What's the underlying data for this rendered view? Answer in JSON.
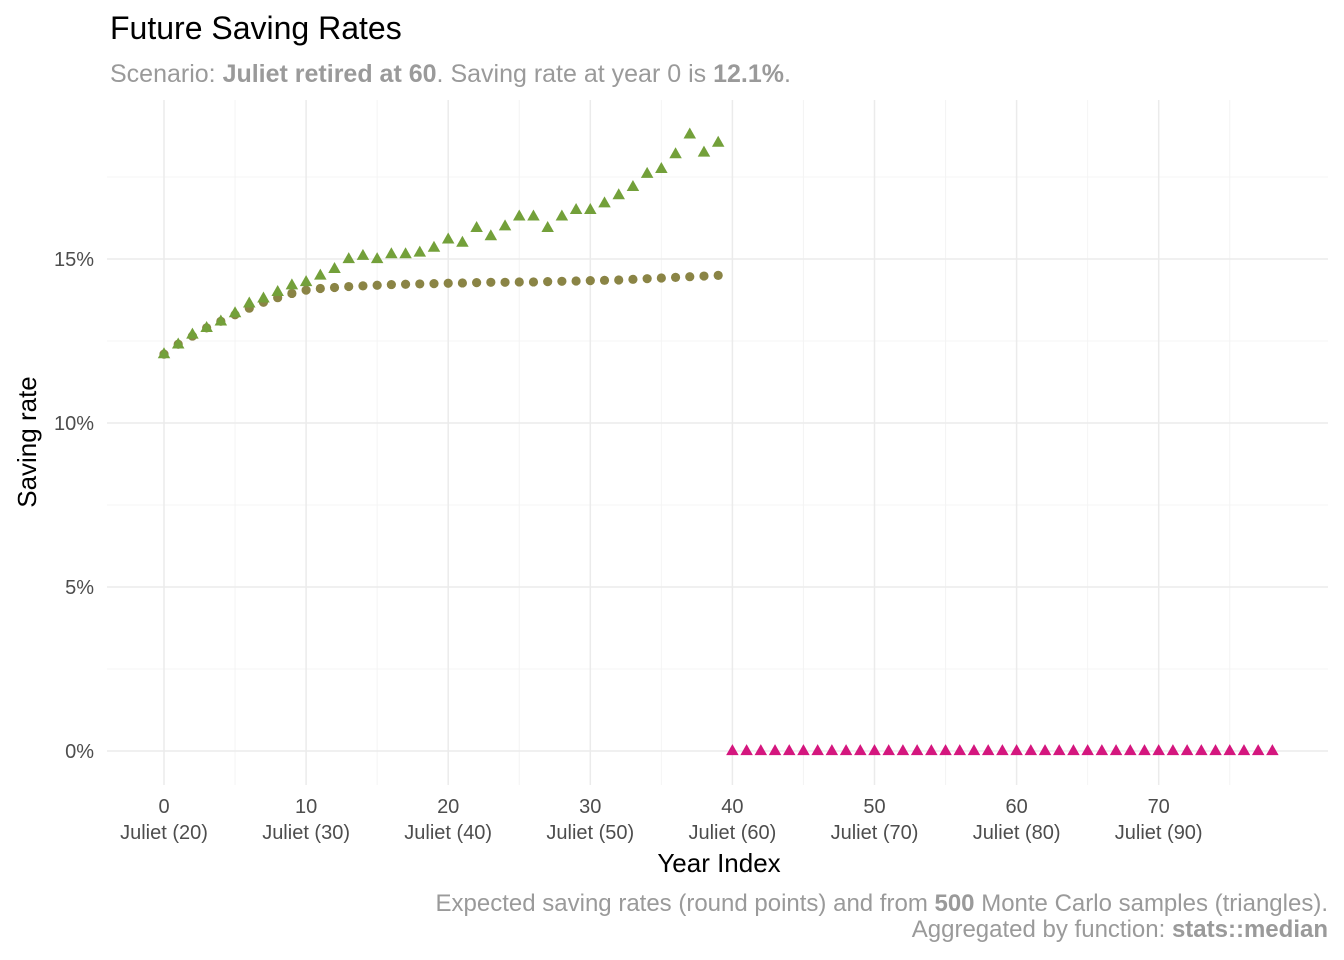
{
  "title": "Future Saving Rates",
  "subtitle": {
    "prefix": "Scenario: ",
    "scenario": "Juliet retired at 60",
    "middle": ". Saving rate at year 0 is ",
    "rate": "12.1%",
    "suffix": "."
  },
  "caption": {
    "line1_prefix": "Expected saving rates (round points) and from ",
    "line1_count": "500",
    "line1_suffix": " Monte Carlo samples (triangles).",
    "line2_prefix": "Aggregated by function: ",
    "line2_func": "stats::median"
  },
  "colors": {
    "expected": "#8a8445",
    "monte_carlo": "#73a03a",
    "retired": "#d4167e",
    "grid_major": "#ebebeb",
    "grid_minor": "#f4f4f4"
  },
  "chart_data": {
    "type": "scatter",
    "xlabel": "Year Index",
    "ylabel": "Saving rate",
    "xlim": [
      -4,
      82
    ],
    "ylim": [
      -1,
      19
    ],
    "grid": true,
    "x_ticks": [
      {
        "value": 0,
        "label": "0",
        "sublabel": "Juliet (20)"
      },
      {
        "value": 10,
        "label": "10",
        "sublabel": "Juliet (30)"
      },
      {
        "value": 20,
        "label": "20",
        "sublabel": "Juliet (40)"
      },
      {
        "value": 30,
        "label": "30",
        "sublabel": "Juliet (50)"
      },
      {
        "value": 40,
        "label": "40",
        "sublabel": "Juliet (60)"
      },
      {
        "value": 50,
        "label": "50",
        "sublabel": "Juliet (70)"
      },
      {
        "value": 60,
        "label": "60",
        "sublabel": "Juliet (80)"
      },
      {
        "value": 70,
        "label": "70",
        "sublabel": "Juliet (90)"
      }
    ],
    "y_ticks": [
      {
        "value": 0,
        "label": "0%"
      },
      {
        "value": 5,
        "label": "5%"
      },
      {
        "value": 10,
        "label": "10%"
      },
      {
        "value": 15,
        "label": "15%"
      }
    ],
    "series": [
      {
        "shape": "circle",
        "color_key": "expected",
        "x": [
          0,
          1,
          2,
          3,
          4,
          5,
          6,
          7,
          8,
          9,
          10,
          11,
          12,
          13,
          14,
          15,
          16,
          17,
          18,
          19,
          20,
          21,
          22,
          23,
          24,
          25,
          26,
          27,
          28,
          29,
          30,
          31,
          32,
          33,
          34,
          35,
          36,
          37,
          38,
          39
        ],
        "values": [
          12.1,
          12.4,
          12.65,
          12.9,
          13.1,
          13.3,
          13.5,
          13.68,
          13.82,
          13.95,
          14.05,
          14.1,
          14.13,
          14.16,
          14.18,
          14.2,
          14.22,
          14.23,
          14.24,
          14.25,
          14.26,
          14.27,
          14.28,
          14.29,
          14.29,
          14.3,
          14.3,
          14.31,
          14.32,
          14.33,
          14.34,
          14.35,
          14.36,
          14.38,
          14.4,
          14.42,
          14.44,
          14.46,
          14.48,
          14.5
        ]
      },
      {
        "shape": "triangle",
        "color_key": "monte_carlo",
        "x": [
          0,
          1,
          2,
          3,
          4,
          5,
          6,
          7,
          8,
          9,
          10,
          11,
          12,
          13,
          14,
          15,
          16,
          17,
          18,
          19,
          20,
          21,
          22,
          23,
          24,
          25,
          26,
          27,
          28,
          29,
          30,
          31,
          32,
          33,
          34,
          35,
          36,
          37,
          38,
          39
        ],
        "values": [
          12.1,
          12.4,
          12.7,
          12.9,
          13.1,
          13.35,
          13.65,
          13.8,
          14.0,
          14.2,
          14.3,
          14.5,
          14.7,
          15.0,
          15.1,
          15.0,
          15.15,
          15.15,
          15.2,
          15.35,
          15.6,
          15.5,
          15.95,
          15.7,
          16.0,
          16.3,
          16.3,
          15.95,
          16.3,
          16.5,
          16.5,
          16.7,
          16.95,
          17.2,
          17.6,
          17.75,
          18.2,
          18.8,
          18.25,
          18.55
        ]
      },
      {
        "shape": "triangle",
        "color_key": "retired",
        "x": [
          40,
          41,
          42,
          43,
          44,
          45,
          46,
          47,
          48,
          49,
          50,
          51,
          52,
          53,
          54,
          55,
          56,
          57,
          58,
          59,
          60,
          61,
          62,
          63,
          64,
          65,
          66,
          67,
          68,
          69,
          70,
          71,
          72,
          73,
          74,
          75,
          76,
          77,
          78
        ],
        "values": [
          0,
          0,
          0,
          0,
          0,
          0,
          0,
          0,
          0,
          0,
          0,
          0,
          0,
          0,
          0,
          0,
          0,
          0,
          0,
          0,
          0,
          0,
          0,
          0,
          0,
          0,
          0,
          0,
          0,
          0,
          0,
          0,
          0,
          0,
          0,
          0,
          0,
          0,
          0
        ]
      }
    ]
  }
}
